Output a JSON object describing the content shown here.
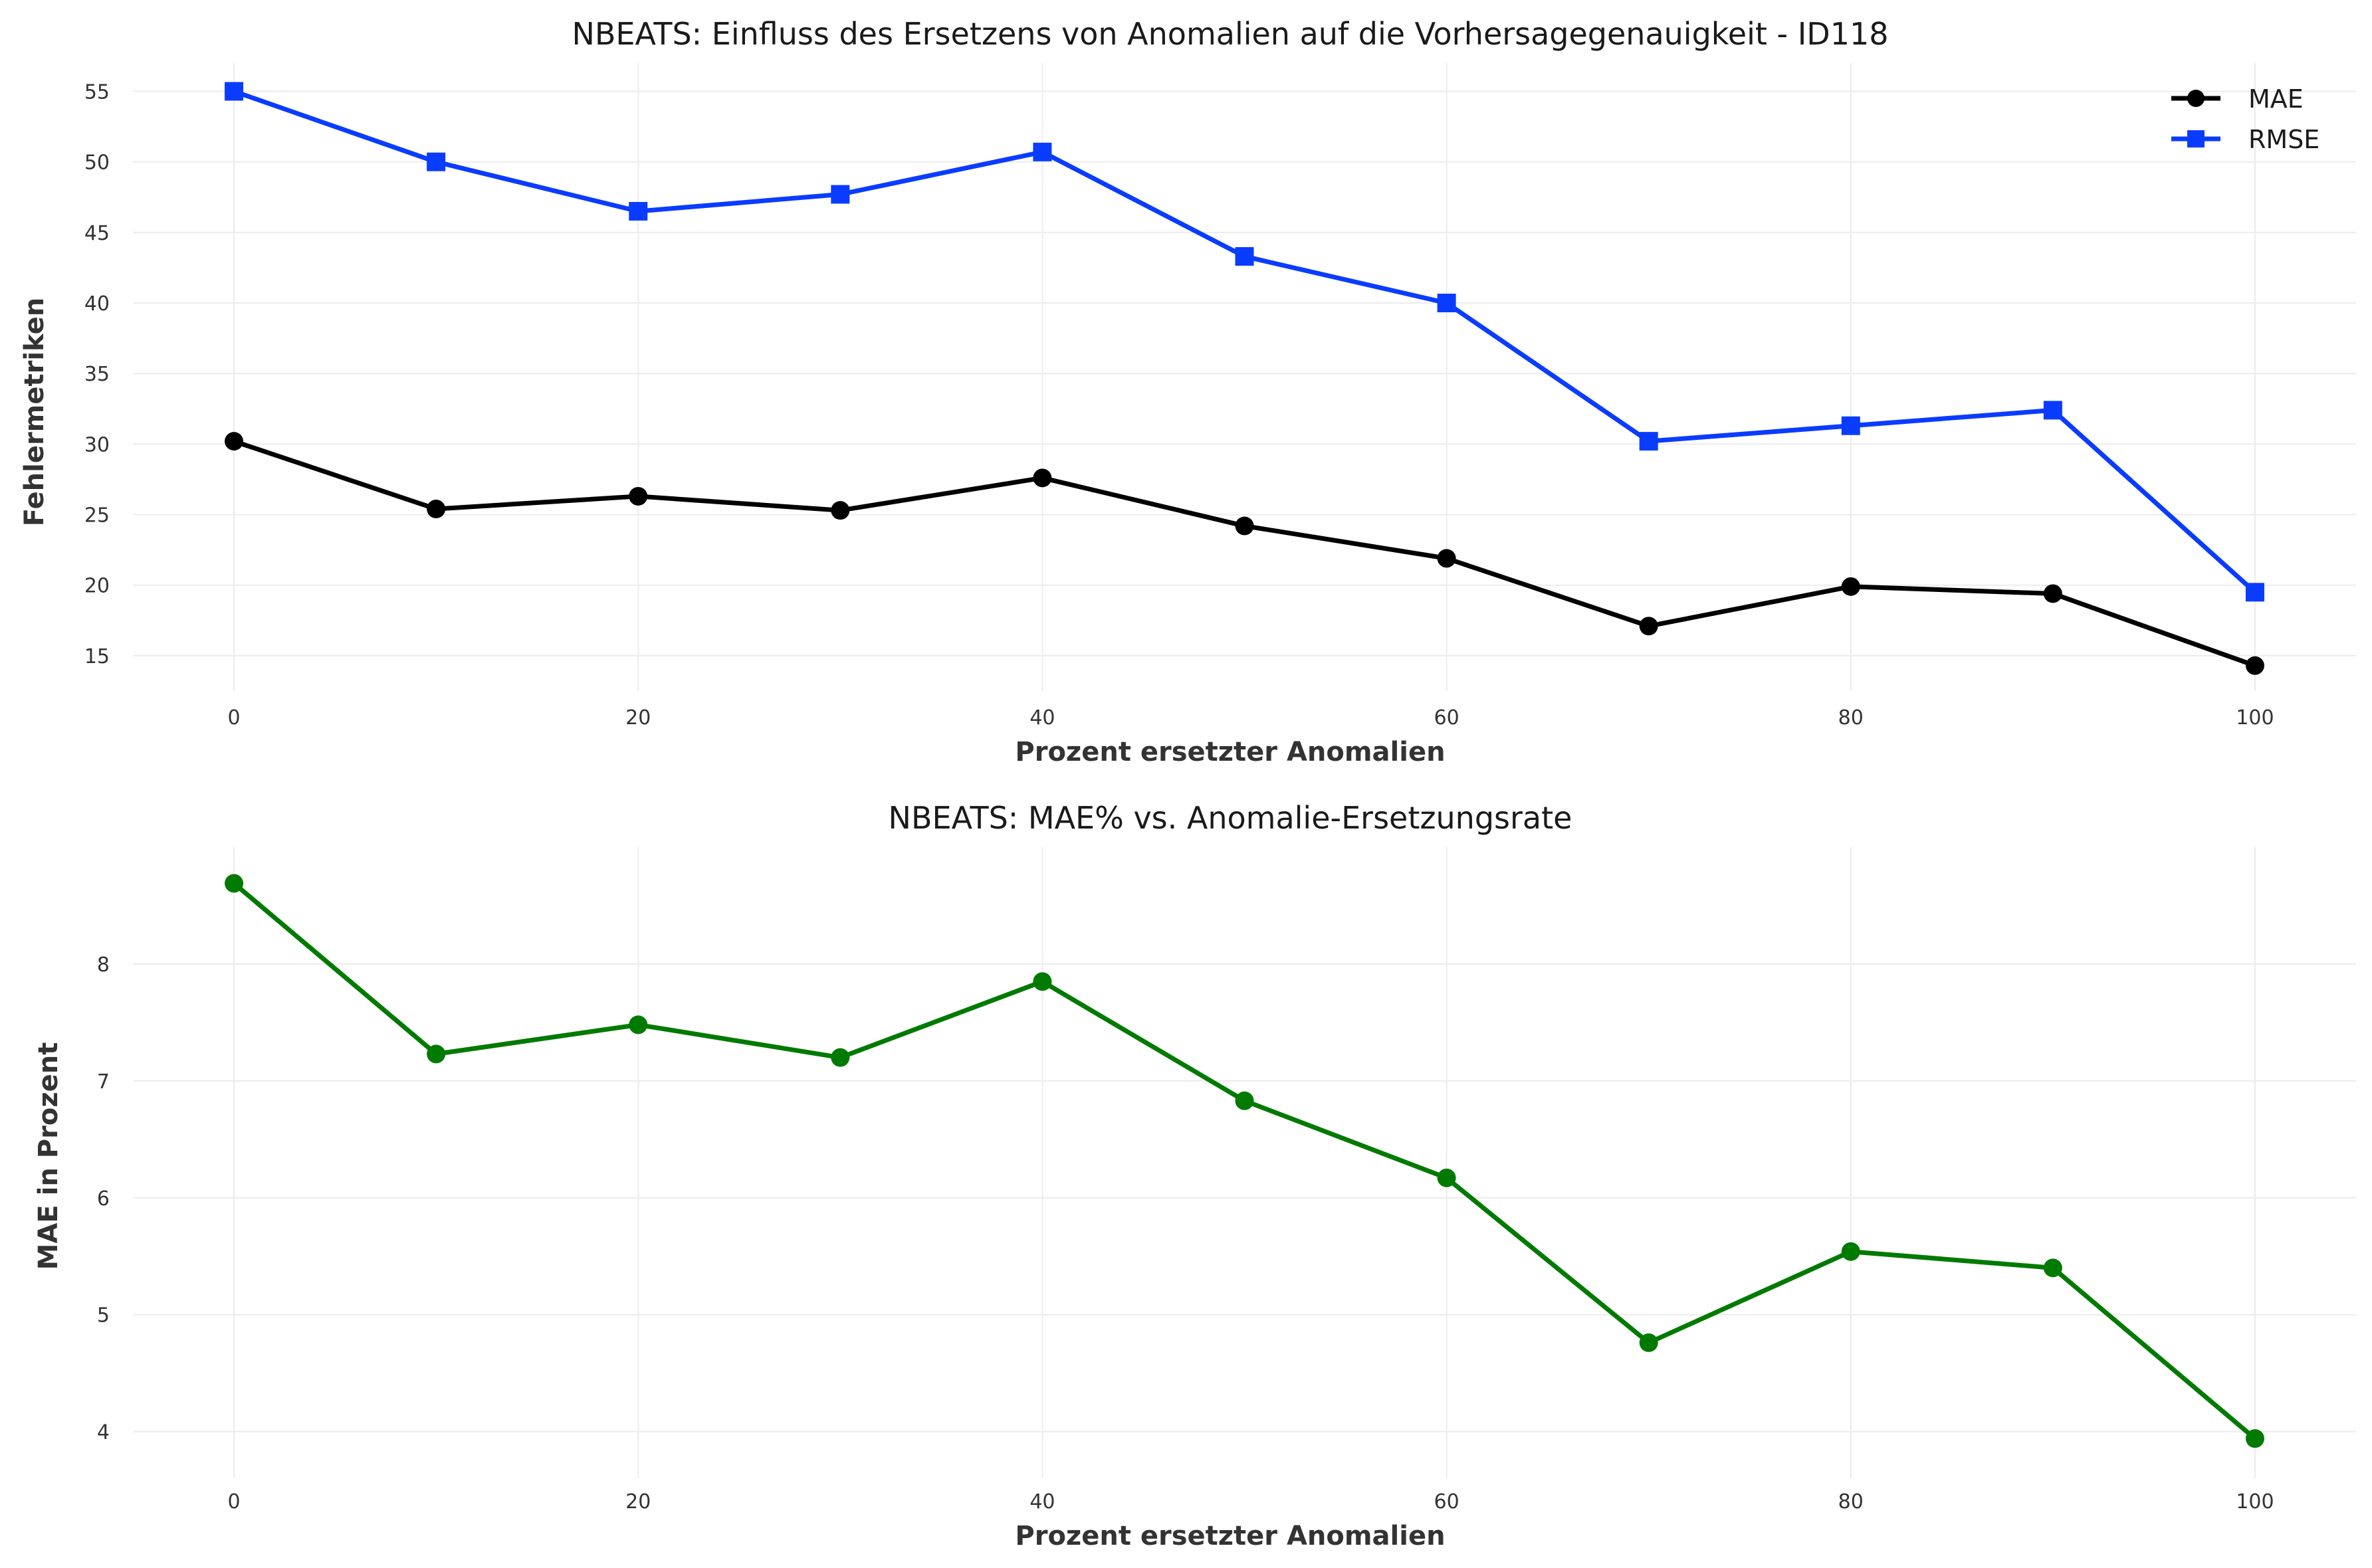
{
  "chart_data": [
    {
      "type": "line",
      "title": "NBEATS: Einfluss des Ersetzens von Anomalien auf die Vorhersagegenauigkeit - ID118",
      "xlabel": "Prozent ersetzter Anomalien",
      "ylabel": "Fehlermetriken",
      "x": [
        0,
        10,
        20,
        30,
        40,
        50,
        60,
        70,
        80,
        90,
        100
      ],
      "xticks": [
        0,
        20,
        40,
        60,
        80,
        100
      ],
      "yticks": [
        15,
        20,
        25,
        30,
        35,
        40,
        45,
        50,
        55
      ],
      "xlim": [
        -5,
        105
      ],
      "ylim": [
        12.5,
        57
      ],
      "grid": true,
      "legend_position": "top-right",
      "series": [
        {
          "name": "MAE",
          "color": "#000000",
          "marker": "circle",
          "values": [
            30.2,
            25.4,
            26.3,
            25.3,
            27.6,
            24.2,
            21.9,
            17.1,
            19.9,
            19.4,
            14.3
          ]
        },
        {
          "name": "RMSE",
          "color": "#0a3cff",
          "marker": "square",
          "values": [
            55.0,
            50.0,
            46.5,
            47.7,
            50.7,
            43.3,
            40.0,
            30.2,
            31.3,
            32.4,
            19.5
          ]
        }
      ]
    },
    {
      "type": "line",
      "title": "NBEATS: MAE% vs. Anomalie-Ersetzungsrate",
      "xlabel": "Prozent ersetzter Anomalien",
      "ylabel": "MAE in Prozent",
      "x": [
        0,
        10,
        20,
        30,
        40,
        50,
        60,
        70,
        80,
        90,
        100
      ],
      "xticks": [
        0,
        20,
        40,
        60,
        80,
        100
      ],
      "yticks": [
        4,
        5,
        6,
        7,
        8
      ],
      "xlim": [
        -5,
        105
      ],
      "ylim": [
        3.6,
        9.0
      ],
      "grid": true,
      "series": [
        {
          "color": "#007a00",
          "marker": "circle",
          "values": [
            8.69,
            7.23,
            7.48,
            7.2,
            7.85,
            6.83,
            6.17,
            4.76,
            5.54,
            5.4,
            3.94
          ]
        }
      ]
    }
  ]
}
